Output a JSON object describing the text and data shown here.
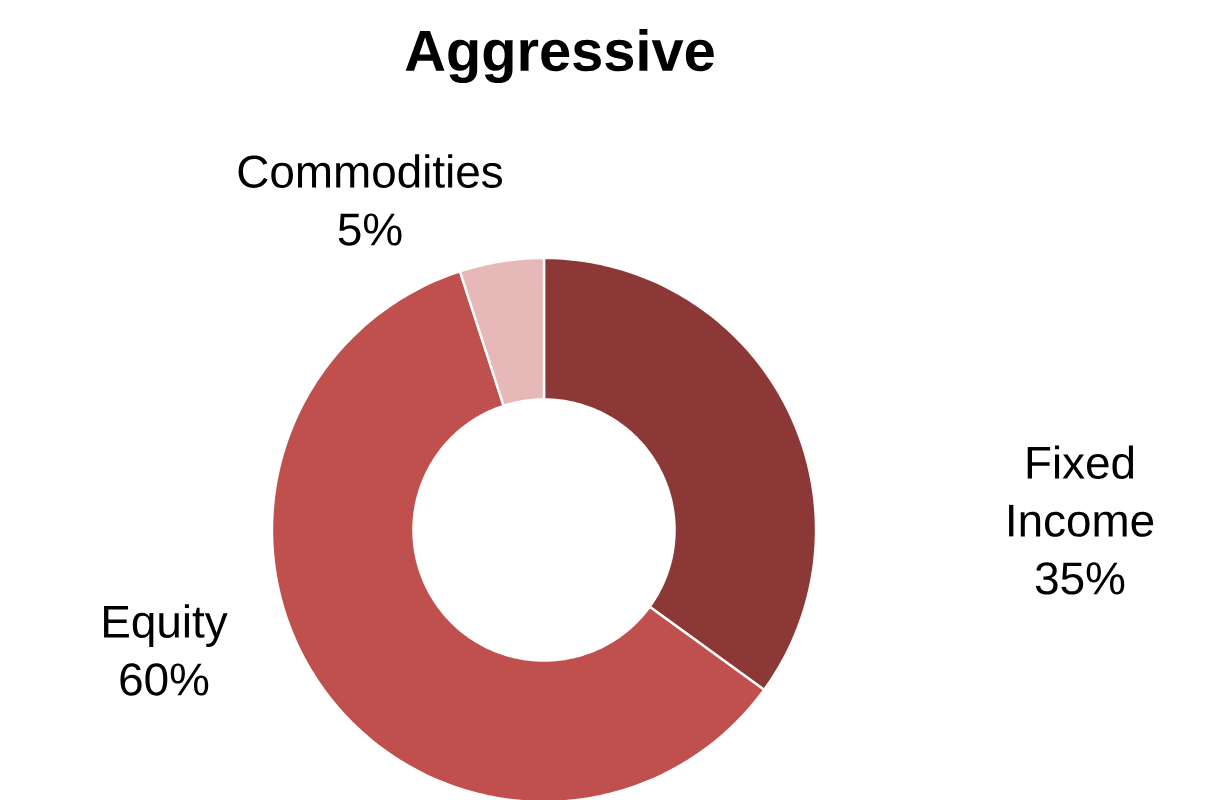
{
  "chart_data": {
    "type": "donut",
    "title": "Aggressive",
    "categories": [
      "Fixed Income",
      "Equity",
      "Commodities"
    ],
    "values": [
      35,
      60,
      5
    ],
    "colors": [
      "#8c3836",
      "#c0504d",
      "#e6b9b8"
    ],
    "value_labels": [
      "35%",
      "60%",
      "5%"
    ]
  }
}
